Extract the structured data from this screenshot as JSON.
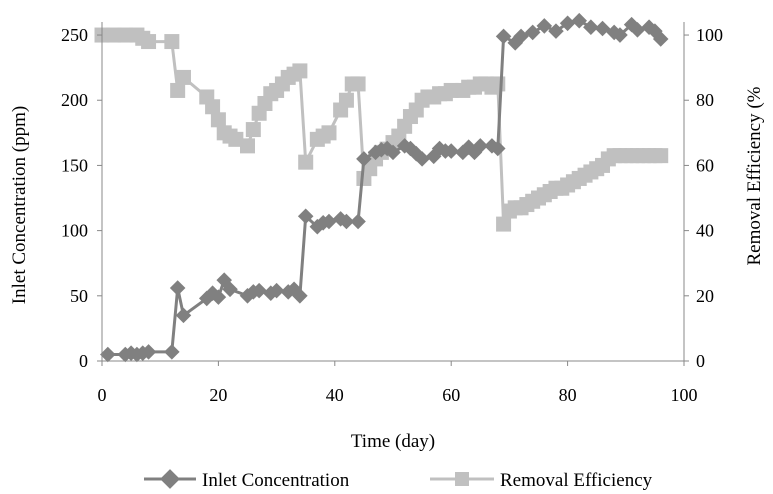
{
  "chart_data": {
    "type": "line",
    "xlabel": "Time (day)",
    "ylabel_left": "Inlet Concentration (ppm)",
    "ylabel_right": "Removal Efficiency (%",
    "xlim": [
      0,
      100
    ],
    "ylim_left": [
      0,
      260
    ],
    "ylim_right": [
      0,
      104
    ],
    "xticks": [
      0,
      20,
      40,
      60,
      80,
      100
    ],
    "yticks_left": [
      0,
      50,
      100,
      150,
      200,
      250
    ],
    "yticks_right": [
      0,
      20,
      40,
      60,
      80,
      100
    ],
    "grid": false,
    "legend_position": "bottom",
    "series": [
      {
        "name": "Inlet Concentration",
        "axis": "left",
        "color": "#808080",
        "marker": "diamond",
        "points": [
          [
            1,
            5
          ],
          [
            4,
            5
          ],
          [
            5,
            6
          ],
          [
            6,
            5
          ],
          [
            7,
            6
          ],
          [
            8,
            7
          ],
          [
            12,
            7
          ],
          [
            13,
            56
          ],
          [
            14,
            35
          ],
          [
            18,
            48
          ],
          [
            19,
            52
          ],
          [
            20,
            49
          ],
          [
            21,
            62
          ],
          [
            22,
            55
          ],
          [
            25,
            50
          ],
          [
            26,
            53
          ],
          [
            27,
            54
          ],
          [
            29,
            52
          ],
          [
            30,
            54
          ],
          [
            32,
            53
          ],
          [
            33,
            55
          ],
          [
            34,
            50
          ],
          [
            35,
            111
          ],
          [
            37,
            103
          ],
          [
            38,
            106
          ],
          [
            39,
            107
          ],
          [
            41,
            109
          ],
          [
            42,
            107
          ],
          [
            44,
            107
          ],
          [
            45,
            155
          ],
          [
            47,
            160
          ],
          [
            48,
            162
          ],
          [
            49,
            163
          ],
          [
            50,
            160
          ],
          [
            52,
            165
          ],
          [
            53,
            163
          ],
          [
            54,
            159
          ],
          [
            55,
            155
          ],
          [
            57,
            157
          ],
          [
            58,
            163
          ],
          [
            59,
            161
          ],
          [
            60,
            161
          ],
          [
            62,
            160
          ],
          [
            63,
            164
          ],
          [
            64,
            160
          ],
          [
            65,
            165
          ],
          [
            67,
            165
          ],
          [
            68,
            163
          ],
          [
            69,
            249
          ],
          [
            71,
            244
          ],
          [
            72,
            249
          ],
          [
            74,
            252
          ],
          [
            76,
            257
          ],
          [
            78,
            253
          ],
          [
            80,
            259
          ],
          [
            82,
            261
          ],
          [
            84,
            256
          ],
          [
            86,
            255
          ],
          [
            88,
            252
          ],
          [
            89,
            250
          ],
          [
            91,
            258
          ],
          [
            92,
            254
          ],
          [
            94,
            256
          ],
          [
            95,
            253
          ],
          [
            96,
            247
          ]
        ]
      },
      {
        "name": "Removal Efficiency",
        "axis": "right",
        "color": "#c0c0c0",
        "marker": "square",
        "points": [
          [
            0,
            100
          ],
          [
            2,
            100
          ],
          [
            4,
            100
          ],
          [
            6,
            100
          ],
          [
            7,
            99
          ],
          [
            8,
            98
          ],
          [
            12,
            98
          ],
          [
            13,
            83
          ],
          [
            14,
            87
          ],
          [
            18,
            81
          ],
          [
            19,
            78
          ],
          [
            20,
            74
          ],
          [
            21,
            70
          ],
          [
            22,
            69
          ],
          [
            23,
            68
          ],
          [
            25,
            66
          ],
          [
            26,
            71
          ],
          [
            27,
            76
          ],
          [
            28,
            79
          ],
          [
            29,
            82
          ],
          [
            30,
            83
          ],
          [
            31,
            85
          ],
          [
            32,
            87
          ],
          [
            33,
            88
          ],
          [
            34,
            89
          ],
          [
            35,
            61
          ],
          [
            37,
            68
          ],
          [
            38,
            69
          ],
          [
            39,
            70
          ],
          [
            41,
            77
          ],
          [
            42,
            80
          ],
          [
            43,
            85
          ],
          [
            44,
            85
          ],
          [
            45,
            56
          ],
          [
            46,
            59
          ],
          [
            47,
            62
          ],
          [
            48,
            64
          ],
          [
            49,
            65
          ],
          [
            50,
            67
          ],
          [
            51,
            69
          ],
          [
            52,
            72
          ],
          [
            53,
            75
          ],
          [
            54,
            77
          ],
          [
            55,
            80
          ],
          [
            56,
            81
          ],
          [
            57,
            81
          ],
          [
            58,
            82
          ],
          [
            59,
            82
          ],
          [
            60,
            83
          ],
          [
            62,
            83
          ],
          [
            63,
            84
          ],
          [
            64,
            84
          ],
          [
            65,
            85
          ],
          [
            66,
            85
          ],
          [
            67,
            84
          ],
          [
            68,
            85
          ],
          [
            69,
            42
          ],
          [
            70,
            46
          ],
          [
            71,
            47
          ],
          [
            72,
            47
          ],
          [
            73,
            48
          ],
          [
            74,
            49
          ],
          [
            75,
            50
          ],
          [
            76,
            51
          ],
          [
            77,
            52
          ],
          [
            78,
            53
          ],
          [
            79,
            53
          ],
          [
            80,
            54
          ],
          [
            81,
            55
          ],
          [
            82,
            56
          ],
          [
            83,
            57
          ],
          [
            84,
            58
          ],
          [
            85,
            59
          ],
          [
            86,
            60
          ],
          [
            87,
            62
          ],
          [
            88,
            63
          ],
          [
            89,
            63
          ],
          [
            90,
            63
          ],
          [
            91,
            63
          ],
          [
            92,
            63
          ],
          [
            93,
            63
          ],
          [
            94,
            63
          ],
          [
            95,
            63
          ],
          [
            96,
            63
          ]
        ]
      }
    ]
  }
}
